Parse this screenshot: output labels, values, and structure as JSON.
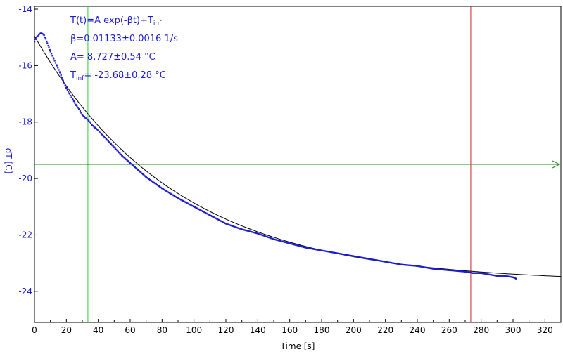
{
  "chart_data": {
    "type": "scatter",
    "xlabel": "Time [s]",
    "ylabel": "dT [C]",
    "xlim": [
      0,
      330
    ],
    "ylim": [
      -25.1,
      -13.9
    ],
    "x_ticks": [
      0,
      20,
      40,
      60,
      80,
      100,
      120,
      140,
      160,
      180,
      200,
      220,
      240,
      260,
      280,
      300,
      320
    ],
    "y_ticks": [
      -14,
      -16,
      -18,
      -20,
      -22,
      -24
    ],
    "grid": false,
    "annotation": {
      "line1_main": "T(t)=A exp(-βt)+T",
      "line1_sub": "inf",
      "line2": "β=0.01133±0.0016 1/s",
      "line3": "A= 8.727±0.54 °C",
      "line4_main": "T",
      "line4_sub": "inf",
      "line4_rest": "= -23.68±0.28 °C"
    },
    "fit": {
      "A": 8.727,
      "beta": 0.01133,
      "T_inf": -23.68
    },
    "markers": {
      "vertical_green_x": 33.5,
      "vertical_red_x": 273.5,
      "horizontal_green_y": -19.5
    },
    "series": [
      {
        "x": [
          0,
          1,
          2,
          3,
          4,
          5,
          6,
          7,
          8,
          9,
          10,
          12,
          14,
          16,
          18,
          20,
          22,
          24,
          26,
          28,
          30,
          32,
          34,
          36,
          38,
          40,
          45,
          50,
          55,
          60,
          65,
          70,
          75,
          80,
          90,
          100,
          110,
          120,
          130,
          140,
          150,
          160,
          170,
          180,
          190,
          200,
          210,
          220,
          230,
          240,
          250,
          260,
          270,
          275,
          280,
          285,
          290,
          295,
          300,
          302
        ],
        "y": [
          -15.15,
          -15.0,
          -14.95,
          -14.88,
          -14.85,
          -14.87,
          -14.92,
          -15.05,
          -15.2,
          -15.35,
          -15.5,
          -15.75,
          -16.0,
          -16.25,
          -16.55,
          -16.8,
          -17.0,
          -17.2,
          -17.4,
          -17.55,
          -17.75,
          -17.85,
          -17.95,
          -18.1,
          -18.2,
          -18.3,
          -18.6,
          -18.9,
          -19.2,
          -19.45,
          -19.7,
          -19.95,
          -20.15,
          -20.35,
          -20.7,
          -21.0,
          -21.3,
          -21.6,
          -21.8,
          -21.95,
          -22.15,
          -22.3,
          -22.45,
          -22.55,
          -22.65,
          -22.75,
          -22.85,
          -22.95,
          -23.05,
          -23.1,
          -23.2,
          -23.25,
          -23.3,
          -23.35,
          -23.35,
          -23.4,
          -23.45,
          -23.45,
          -23.5,
          -23.55
        ]
      }
    ]
  }
}
